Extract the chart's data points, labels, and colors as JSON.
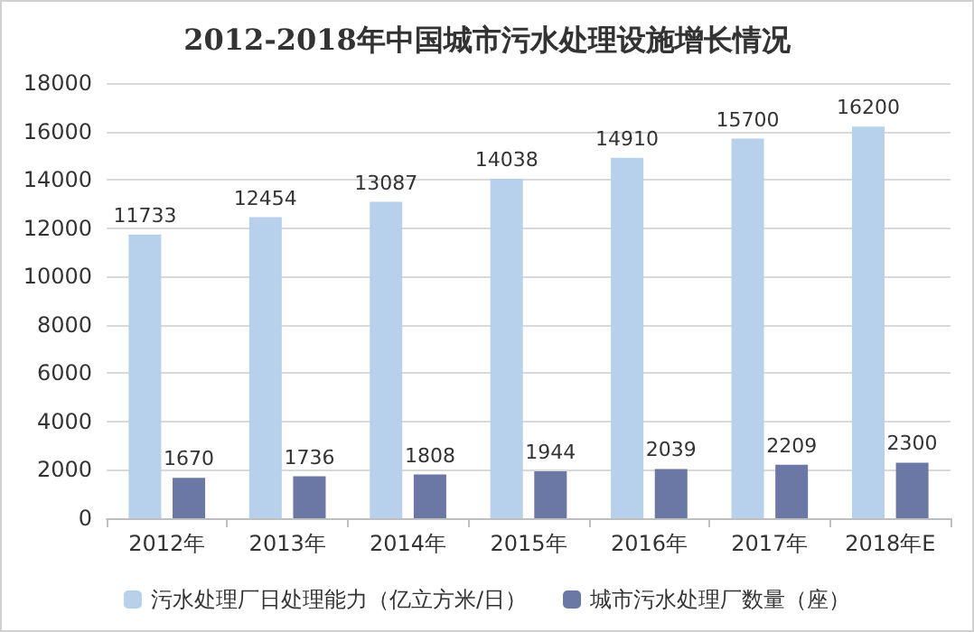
{
  "chart_data": {
    "type": "bar",
    "title": "2012-2018年中国城市污水处理设施增长情况",
    "categories": [
      "2012年",
      "2013年",
      "2014年",
      "2015年",
      "2016年",
      "2017年",
      "2018年E"
    ],
    "series": [
      {
        "name": "污水处理厂日处理能力（亿立方米/日）",
        "color": "#b7d0ec",
        "values": [
          11733,
          12454,
          13087,
          14038,
          14910,
          15700,
          16200
        ]
      },
      {
        "name": "城市污水处理厂数量（座）",
        "color": "#6b78a6",
        "values": [
          1670,
          1736,
          1808,
          1944,
          2039,
          2209,
          2300
        ]
      }
    ],
    "ylim": [
      0,
      18000
    ],
    "yticks": [
      0,
      2000,
      4000,
      6000,
      8000,
      10000,
      12000,
      14000,
      16000,
      18000
    ],
    "grid": "y",
    "legend": "bottom",
    "data_labels": true
  }
}
